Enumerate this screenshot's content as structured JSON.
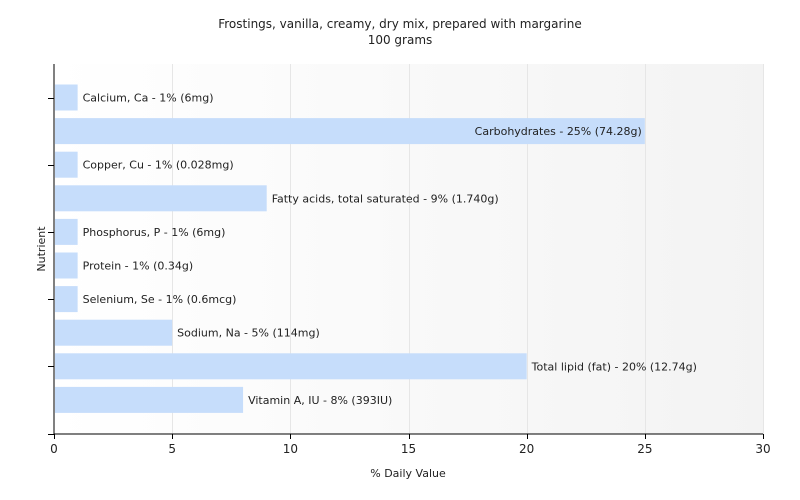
{
  "chart_data": {
    "type": "bar",
    "orientation": "horizontal",
    "title": "Frostings, vanilla, creamy, dry mix, prepared with margarine",
    "subtitle": "100 grams",
    "xlabel": "% Daily Value",
    "ylabel": "Nutrient",
    "xlim": [
      0,
      30
    ],
    "xticks": [
      0,
      5,
      10,
      15,
      20,
      25,
      30
    ],
    "grid": true,
    "legend": "none",
    "bar_color": "#c6ddfb",
    "categories": [
      "Calcium, Ca",
      "Carbohydrates",
      "Copper, Cu",
      "Fatty acids, total saturated",
      "Phosphorus, P",
      "Protein",
      "Selenium, Se",
      "Sodium, Na",
      "Total lipid (fat)",
      "Vitamin A, IU"
    ],
    "values": [
      1,
      25,
      1,
      9,
      1,
      1,
      1,
      5,
      20,
      8
    ],
    "labels": [
      "Calcium, Ca - 1% (6mg)",
      "Carbohydrates - 25% (74.28g)",
      "Copper, Cu - 1% (0.028mg)",
      "Fatty acids, total saturated - 9% (1.740g)",
      "Phosphorus, P - 1% (6mg)",
      "Protein - 1% (0.34g)",
      "Selenium, Se - 1% (0.6mcg)",
      "Sodium, Na - 5% (114mg)",
      "Total lipid (fat) - 20% (12.74g)",
      "Vitamin A, IU - 8% (393IU)"
    ]
  }
}
